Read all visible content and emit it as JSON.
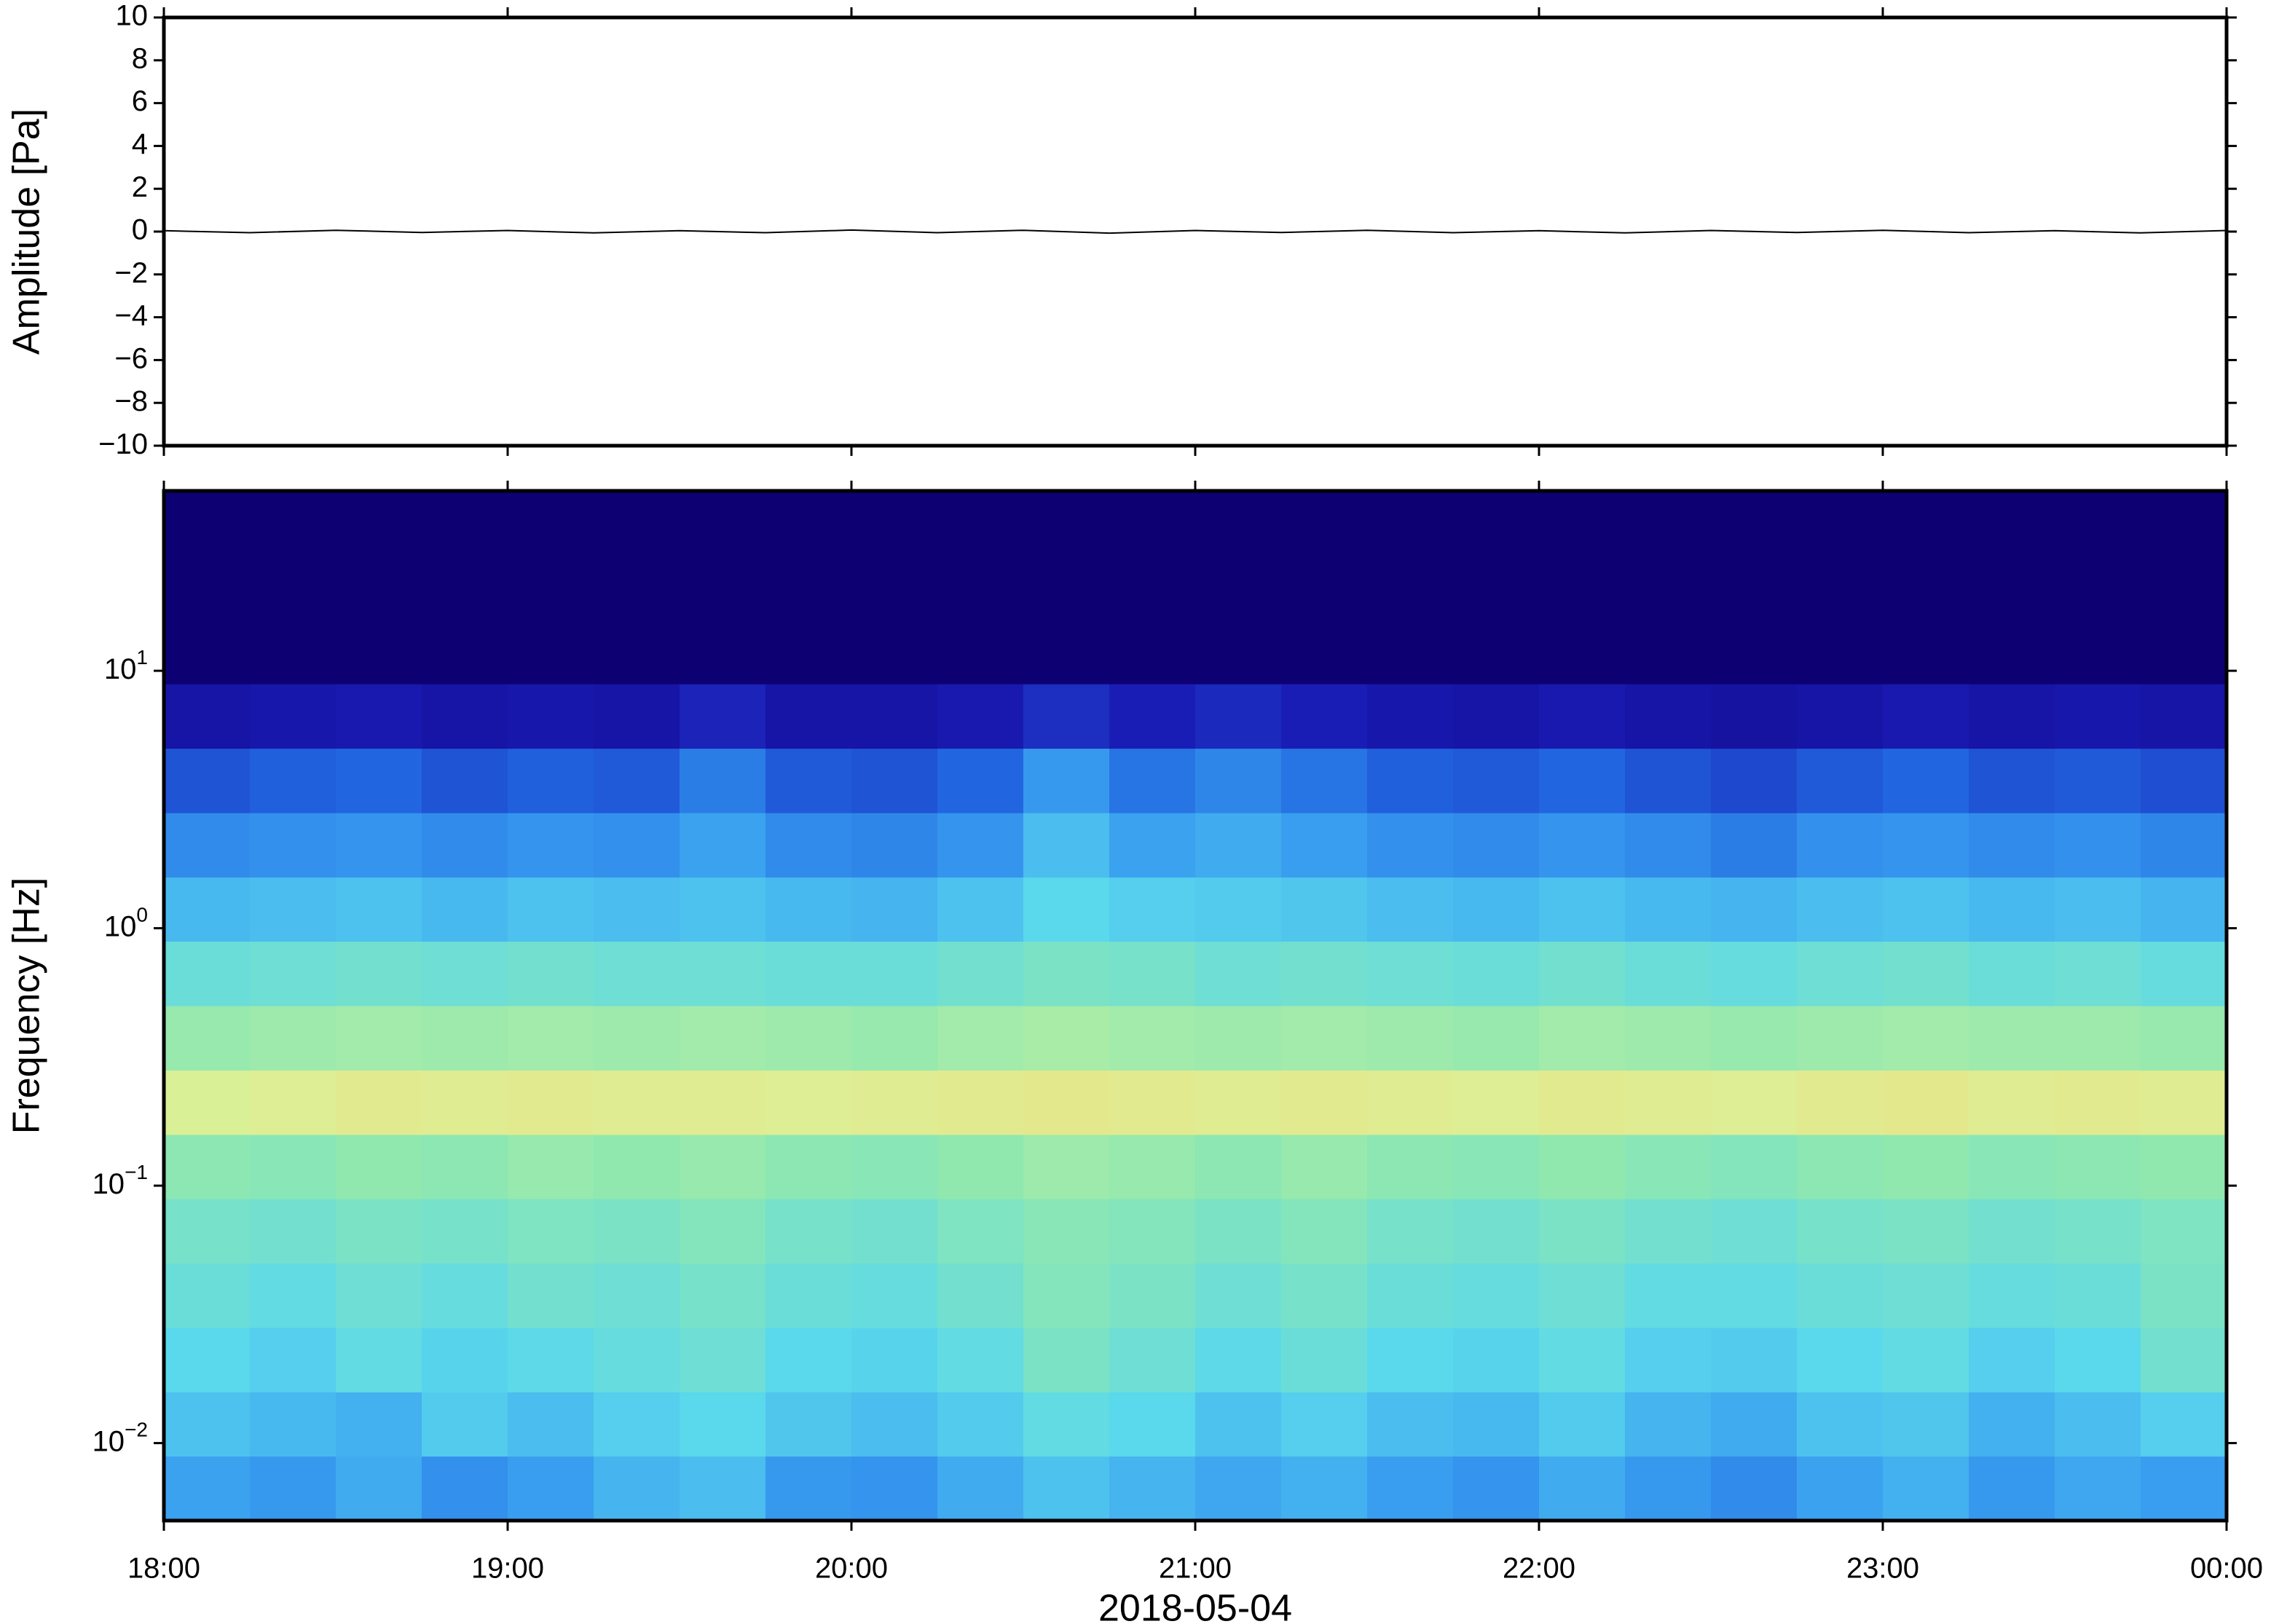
{
  "chart_data": [
    {
      "type": "line",
      "ylabel": "Amplitude [Pa]",
      "color": "#000000",
      "xlim": [
        18,
        24
      ],
      "xticks": [
        18,
        19,
        20,
        21,
        22,
        23,
        24
      ],
      "ylim": [
        -10,
        10
      ],
      "yticks": [
        {
          "value": -10,
          "label": "−10"
        },
        {
          "value": -8,
          "label": "−8"
        },
        {
          "value": -6,
          "label": "−6"
        },
        {
          "value": -4,
          "label": "−4"
        },
        {
          "value": -2,
          "label": "−2"
        },
        0,
        2,
        4,
        6,
        8,
        10
      ],
      "x": [
        18,
        18.25,
        18.5,
        18.75,
        19,
        19.25,
        19.5,
        19.75,
        20,
        20.25,
        20.5,
        20.75,
        21,
        21.25,
        21.5,
        21.75,
        22,
        22.25,
        22.5,
        22.75,
        23,
        23.25,
        23.5,
        23.75,
        24
      ],
      "values": [
        0.04,
        -0.05,
        0.06,
        -0.04,
        0.05,
        -0.06,
        0.04,
        -0.05,
        0.07,
        -0.05,
        0.06,
        -0.07,
        0.05,
        -0.04,
        0.06,
        -0.05,
        0.04,
        -0.06,
        0.05,
        -0.04,
        0.06,
        -0.05,
        0.04,
        -0.06,
        0.05
      ]
    },
    {
      "type": "heatmap",
      "ylabel": "Frequency [Hz]",
      "xlabel": "2018-05-04",
      "log_y": true,
      "xlim": [
        18,
        24
      ],
      "xticks": [
        {
          "value": 18,
          "label": "18:00"
        },
        {
          "value": 19,
          "label": "19:00"
        },
        {
          "value": 20,
          "label": "20:00"
        },
        {
          "value": 21,
          "label": "21:00"
        },
        {
          "value": 22,
          "label": "22:00"
        },
        {
          "value": 23,
          "label": "23:00"
        },
        {
          "value": 24,
          "label": "00:00"
        }
      ],
      "ylim": [
        0.005,
        50
      ],
      "yticks": [
        {
          "value": 0.01,
          "label": "10",
          "exponent": "−2"
        },
        {
          "value": 0.1,
          "label": "10",
          "exponent": "−1"
        },
        {
          "value": 1,
          "label": "10",
          "exponent": "0"
        },
        {
          "value": 10,
          "label": "10",
          "exponent": "1"
        }
      ],
      "x_edges": [
        18,
        18.25,
        18.5,
        18.75,
        19,
        19.25,
        19.5,
        19.75,
        20,
        20.25,
        20.5,
        20.75,
        21,
        21.25,
        21.5,
        21.75,
        22,
        22.25,
        22.5,
        22.75,
        23,
        23.25,
        23.5,
        23.75,
        24
      ],
      "y_edges": [
        0.005,
        0.0089,
        0.0158,
        0.0281,
        0.05,
        0.089,
        0.158,
        0.281,
        0.5,
        0.89,
        1.58,
        2.81,
        5,
        8.9,
        50
      ],
      "zlim": [
        0,
        1
      ],
      "colormap": [
        "#0d0072",
        "#1a1ab3",
        "#2166e0",
        "#3aa0f0",
        "#5ad8ec",
        "#8ee8b0",
        "#d8f29a",
        "#f7d87a",
        "#f5a060"
      ],
      "z": [
        [
          0.38,
          0.36,
          0.4,
          0.34,
          0.37,
          0.42,
          0.44,
          0.36,
          0.35,
          0.4,
          0.45,
          0.42,
          0.39,
          0.41,
          0.37,
          0.35,
          0.4,
          0.36,
          0.33,
          0.38,
          0.41,
          0.36,
          0.39,
          0.37
        ],
        [
          0.45,
          0.43,
          0.41,
          0.47,
          0.44,
          0.48,
          0.5,
          0.46,
          0.44,
          0.47,
          0.52,
          0.5,
          0.45,
          0.48,
          0.44,
          0.43,
          0.47,
          0.42,
          0.4,
          0.45,
          0.46,
          0.41,
          0.44,
          0.48
        ],
        [
          0.5,
          0.48,
          0.52,
          0.49,
          0.51,
          0.53,
          0.55,
          0.5,
          0.49,
          0.52,
          0.58,
          0.55,
          0.51,
          0.54,
          0.5,
          0.49,
          0.52,
          0.48,
          0.47,
          0.5,
          0.52,
          0.48,
          0.5,
          0.56
        ],
        [
          0.54,
          0.52,
          0.55,
          0.53,
          0.56,
          0.55,
          0.57,
          0.54,
          0.53,
          0.56,
          0.6,
          0.58,
          0.55,
          0.57,
          0.54,
          0.53,
          0.55,
          0.52,
          0.52,
          0.54,
          0.55,
          0.53,
          0.54,
          0.58
        ],
        [
          0.57,
          0.56,
          0.58,
          0.57,
          0.59,
          0.58,
          0.6,
          0.57,
          0.56,
          0.59,
          0.61,
          0.6,
          0.58,
          0.6,
          0.57,
          0.56,
          0.58,
          0.56,
          0.55,
          0.57,
          0.58,
          0.56,
          0.57,
          0.59
        ],
        [
          0.62,
          0.61,
          0.63,
          0.62,
          0.64,
          0.63,
          0.64,
          0.62,
          0.61,
          0.63,
          0.65,
          0.64,
          0.62,
          0.64,
          0.62,
          0.61,
          0.63,
          0.61,
          0.6,
          0.62,
          0.63,
          0.61,
          0.62,
          0.63
        ],
        [
          0.76,
          0.77,
          0.79,
          0.78,
          0.79,
          0.78,
          0.78,
          0.77,
          0.78,
          0.79,
          0.8,
          0.79,
          0.78,
          0.79,
          0.78,
          0.77,
          0.79,
          0.78,
          0.77,
          0.79,
          0.8,
          0.78,
          0.79,
          0.78
        ],
        [
          0.64,
          0.65,
          0.66,
          0.65,
          0.66,
          0.65,
          0.66,
          0.65,
          0.64,
          0.66,
          0.67,
          0.66,
          0.65,
          0.66,
          0.65,
          0.64,
          0.66,
          0.65,
          0.64,
          0.65,
          0.66,
          0.65,
          0.65,
          0.64
        ],
        [
          0.54,
          0.55,
          0.56,
          0.55,
          0.56,
          0.55,
          0.55,
          0.54,
          0.54,
          0.56,
          0.58,
          0.57,
          0.55,
          0.56,
          0.55,
          0.54,
          0.56,
          0.54,
          0.53,
          0.55,
          0.56,
          0.54,
          0.55,
          0.53
        ],
        [
          0.43,
          0.44,
          0.45,
          0.43,
          0.45,
          0.44,
          0.45,
          0.43,
          0.42,
          0.45,
          0.5,
          0.48,
          0.47,
          0.46,
          0.44,
          0.43,
          0.45,
          0.43,
          0.42,
          0.44,
          0.45,
          0.43,
          0.44,
          0.42
        ],
        [
          0.33,
          0.34,
          0.35,
          0.33,
          0.35,
          0.34,
          0.38,
          0.33,
          0.32,
          0.35,
          0.44,
          0.38,
          0.4,
          0.37,
          0.34,
          0.33,
          0.35,
          0.33,
          0.3,
          0.34,
          0.35,
          0.33,
          0.34,
          0.32
        ],
        [
          0.22,
          0.24,
          0.25,
          0.22,
          0.24,
          0.23,
          0.3,
          0.23,
          0.22,
          0.25,
          0.36,
          0.28,
          0.32,
          0.28,
          0.24,
          0.23,
          0.25,
          0.22,
          0.2,
          0.23,
          0.25,
          0.22,
          0.23,
          0.21
        ],
        [
          0.1,
          0.11,
          0.12,
          0.1,
          0.11,
          0.1,
          0.14,
          0.1,
          0.1,
          0.12,
          0.16,
          0.13,
          0.15,
          0.13,
          0.11,
          0.1,
          0.12,
          0.1,
          0.09,
          0.1,
          0.12,
          0.1,
          0.11,
          0.1
        ],
        [
          0,
          0,
          0,
          0,
          0,
          0,
          0,
          0,
          0,
          0,
          0,
          0,
          0,
          0,
          0,
          0,
          0,
          0,
          0,
          0,
          0,
          0,
          0,
          0
        ]
      ]
    }
  ]
}
